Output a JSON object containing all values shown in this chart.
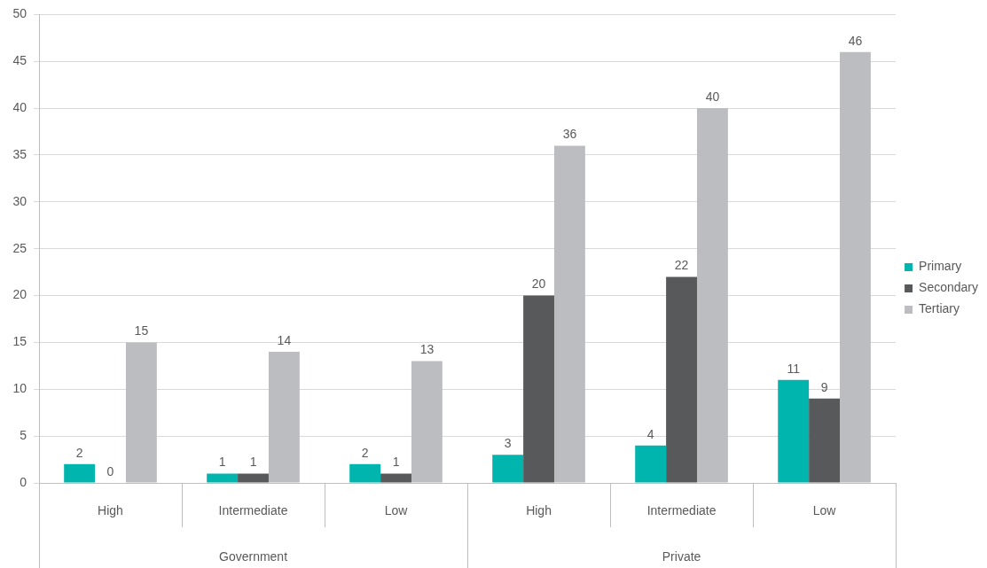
{
  "chart_data": {
    "type": "bar",
    "categories": [
      "High",
      "Intermediate",
      "Low",
      "High",
      "Intermediate",
      "Low"
    ],
    "annotations": [
      "Government",
      "Private"
    ],
    "series": [
      {
        "name": "Primary",
        "color": "#00b5ad",
        "values": [
          2,
          1,
          2,
          3,
          4,
          11
        ]
      },
      {
        "name": "Secondary",
        "color": "#58595b",
        "values": [
          0,
          1,
          1,
          20,
          22,
          9
        ]
      },
      {
        "name": "Tertiary",
        "color": "#bcbdc0",
        "values": [
          15,
          14,
          13,
          36,
          40,
          46
        ]
      }
    ],
    "ylim": [
      0,
      50
    ],
    "yticks": [
      0,
      5,
      10,
      15,
      20,
      25,
      30,
      35,
      40,
      45,
      50
    ],
    "grid": "y",
    "legend": "right",
    "data_labels": true
  }
}
